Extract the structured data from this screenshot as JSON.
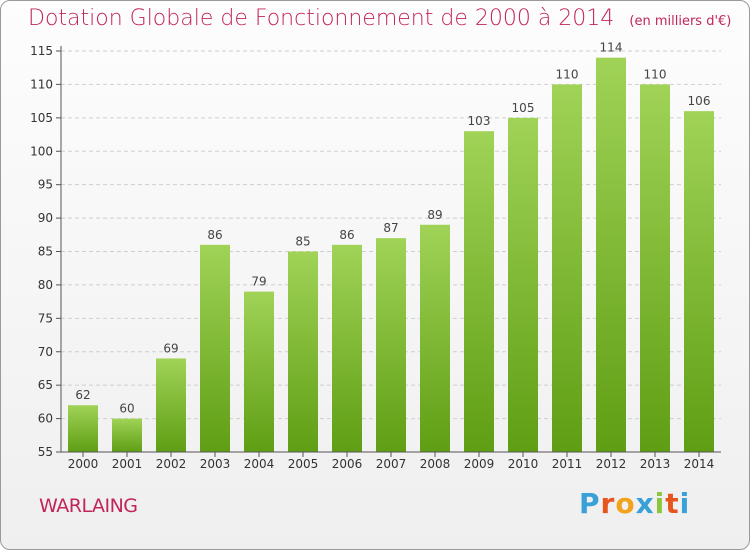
{
  "colors": {
    "title": "#c2245b",
    "bar_top": "#a0d357",
    "bar_bottom": "#5f9e14",
    "grid": "#cfcfcf",
    "axis": "#555555"
  },
  "chart_data": {
    "type": "bar",
    "title": "Dotation Globale de Fonctionnement de 2000 à 2014",
    "subtitle": "(en milliers d'€)",
    "categories": [
      "2000",
      "2001",
      "2002",
      "2003",
      "2004",
      "2005",
      "2006",
      "2007",
      "2008",
      "2009",
      "2010",
      "2011",
      "2012",
      "2013",
      "2014"
    ],
    "values": [
      62,
      60,
      69,
      86,
      79,
      85,
      86,
      87,
      89,
      103,
      105,
      110,
      114,
      110,
      106
    ],
    "ylim": [
      55,
      115
    ],
    "yticks": [
      55,
      60,
      65,
      70,
      75,
      80,
      85,
      90,
      95,
      100,
      105,
      110,
      115
    ],
    "grid": true,
    "xlabel": "",
    "ylabel": ""
  },
  "footer": {
    "commune": "WARLAING"
  },
  "logo": {
    "letters": [
      "P",
      "r",
      "o",
      "x",
      "i",
      "t",
      "i"
    ],
    "letter_colors": [
      "#3aa0d8",
      "#e8541d",
      "#f3a21c",
      "#3aa0d8",
      "#8cc63f",
      "#e8541d",
      "#3aa0d8"
    ]
  }
}
